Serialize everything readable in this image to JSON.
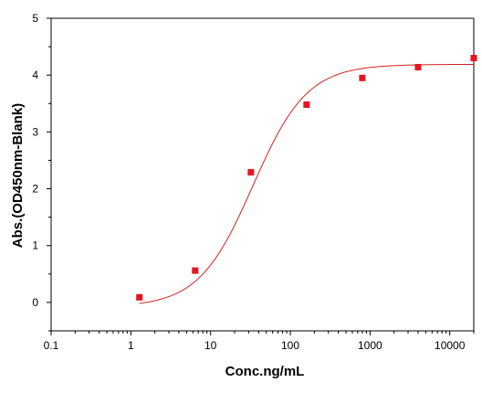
{
  "chart_data": {
    "type": "scatter",
    "xscale": "log",
    "xlim": [
      0.1,
      20000
    ],
    "ylim": [
      -0.5,
      5
    ],
    "xticks": [
      0.1,
      1,
      10,
      100,
      1000,
      10000
    ],
    "xtick_labels": [
      "0.1",
      "1",
      "10",
      "100",
      "1000",
      "10000"
    ],
    "yticks": [
      0,
      1,
      2,
      3,
      4,
      5
    ],
    "ytick_labels": [
      "0",
      "1",
      "2",
      "3",
      "4",
      "5"
    ],
    "xlabel": "Conc.ng/mL",
    "ylabel": "Abs.(OD450nm-Blank)",
    "grid": false,
    "legend": "none",
    "series": [
      {
        "x": [
          1.28,
          6.4,
          32,
          160,
          800,
          4000,
          20000
        ],
        "y": [
          0.09,
          0.56,
          2.29,
          3.48,
          3.95,
          4.14,
          4.3
        ]
      }
    ],
    "fit_curve": {
      "type": "4PL",
      "bottom": -0.08,
      "top": 4.19,
      "ec50": 34,
      "hill": 1.28
    },
    "colors": {
      "marker": "#e8141c",
      "curve": "#d42020",
      "axis": "#000000"
    }
  }
}
